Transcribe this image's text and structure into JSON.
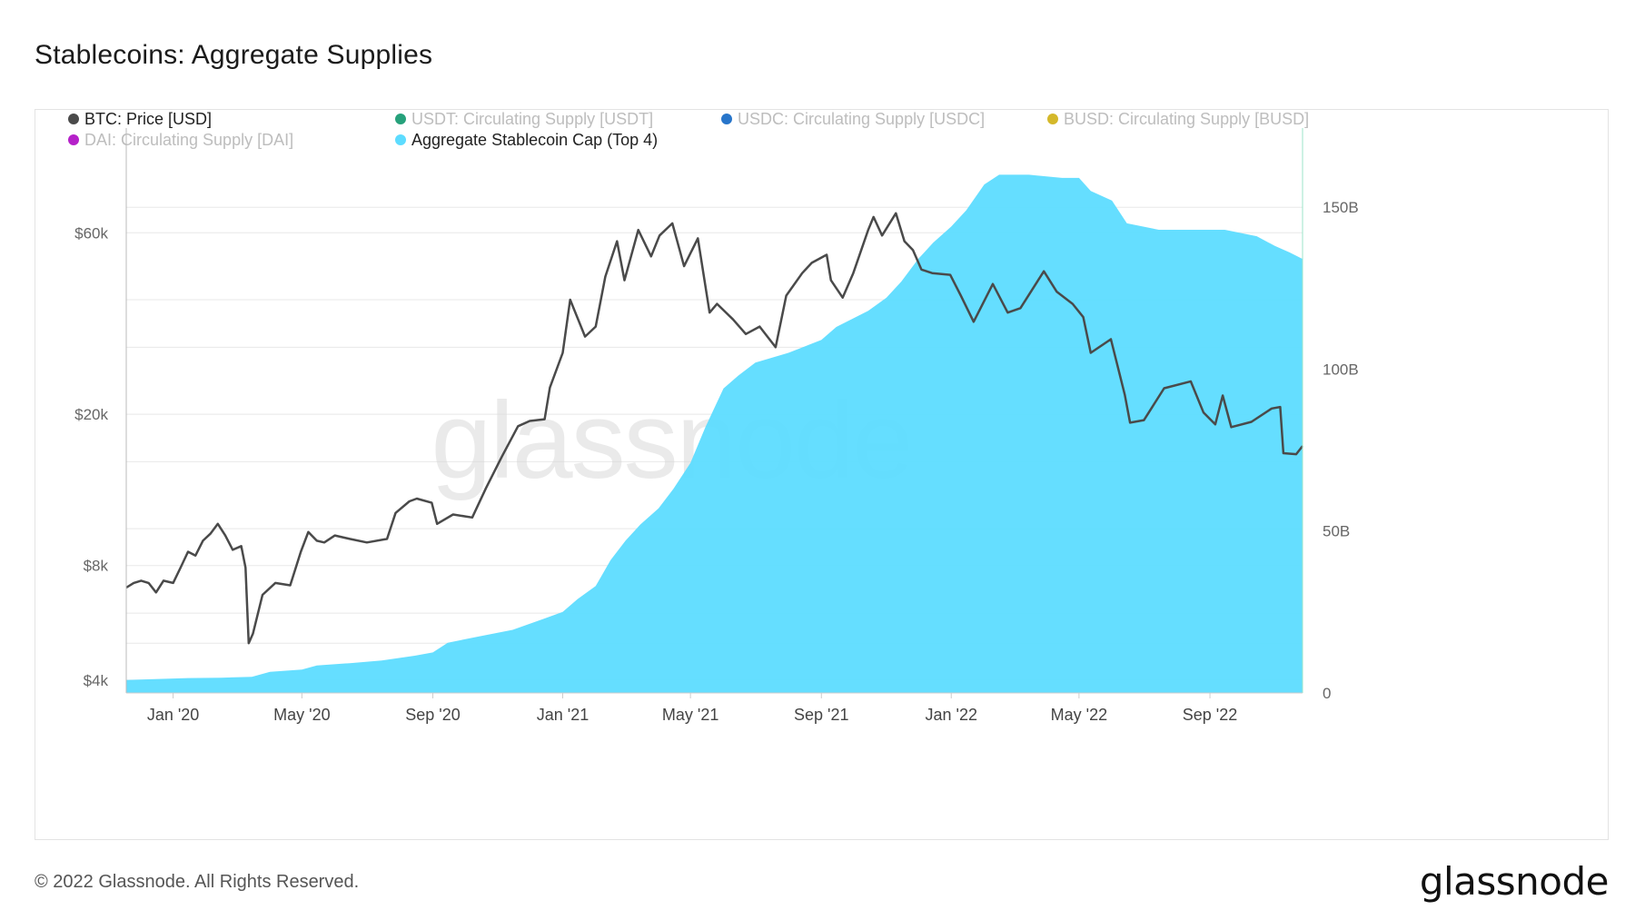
{
  "title": "Stablecoins: Aggregate Supplies",
  "footer": {
    "copyright": "© 2022 Glassnode. All Rights Reserved.",
    "brand": "glassnode"
  },
  "watermark": "glassnode",
  "colors": {
    "btc": "#4a4a4a",
    "usdt": "#26a17b",
    "usdc": "#2775ca",
    "busd": "#d4b82a",
    "dai": "#b521c9",
    "aggregate": "#5ddcff",
    "grid": "#e8e8e8",
    "axis_text": "#666666"
  },
  "chart_data": {
    "type": "line",
    "title": "Stablecoins: Aggregate Supplies",
    "legend": [
      {
        "name": "BTC: Price [USD]",
        "color": "#4a4a4a",
        "active": true
      },
      {
        "name": "USDT: Circulating Supply [USDT]",
        "color": "#26a17b",
        "active": false
      },
      {
        "name": "USDC: Circulating Supply [USDC]",
        "color": "#2775ca",
        "active": false
      },
      {
        "name": "BUSD: Circulating Supply [BUSD]",
        "color": "#d4b82a",
        "active": false
      },
      {
        "name": "DAI: Circulating Supply [DAI]",
        "color": "#b521c9",
        "active": false
      },
      {
        "name": "Aggregate Stablecoin Cap (Top 4)",
        "color": "#5ddcff",
        "active": true
      }
    ],
    "legend_position": "top",
    "x_ticks": [
      "Jan '20",
      "May '20",
      "Sep '20",
      "Jan '21",
      "May '21",
      "Sep '21",
      "Jan '22",
      "May '22",
      "Sep '22"
    ],
    "x_tick_dates": [
      "2020-01-01",
      "2020-05-01",
      "2020-09-01",
      "2021-01-01",
      "2021-05-01",
      "2021-09-01",
      "2022-01-01",
      "2022-05-01",
      "2022-09-01"
    ],
    "x_range": [
      "2019-11-18",
      "2022-11-27"
    ],
    "y_left": {
      "scale": "log",
      "ticks": [
        "$4k",
        "$8k",
        "$20k",
        "$60k"
      ],
      "tick_values": [
        4000,
        8000,
        20000,
        60000
      ],
      "range": [
        3700,
        110000
      ]
    },
    "y_right": {
      "scale": "linear",
      "ticks": [
        "0",
        "50B",
        "100B",
        "150B"
      ],
      "tick_values": [
        0,
        50,
        100,
        150
      ],
      "range": [
        0,
        173
      ]
    },
    "grid": true,
    "series": [
      {
        "name": "BTC: Price [USD]",
        "axis": "left",
        "style": "line",
        "points": [
          [
            "2019-11-18",
            7000
          ],
          [
            "2019-11-25",
            7200
          ],
          [
            "2019-12-02",
            7300
          ],
          [
            "2019-12-09",
            7200
          ],
          [
            "2019-12-16",
            6800
          ],
          [
            "2019-12-23",
            7300
          ],
          [
            "2020-01-01",
            7200
          ],
          [
            "2020-01-08",
            7900
          ],
          [
            "2020-01-15",
            8700
          ],
          [
            "2020-01-22",
            8500
          ],
          [
            "2020-01-29",
            9300
          ],
          [
            "2020-02-05",
            9700
          ],
          [
            "2020-02-12",
            10300
          ],
          [
            "2020-02-19",
            9600
          ],
          [
            "2020-02-26",
            8800
          ],
          [
            "2020-03-05",
            9000
          ],
          [
            "2020-03-09",
            7900
          ],
          [
            "2020-03-12",
            5000
          ],
          [
            "2020-03-16",
            5300
          ],
          [
            "2020-03-25",
            6700
          ],
          [
            "2020-04-06",
            7200
          ],
          [
            "2020-04-20",
            7100
          ],
          [
            "2020-04-30",
            8700
          ],
          [
            "2020-05-07",
            9800
          ],
          [
            "2020-05-15",
            9300
          ],
          [
            "2020-05-22",
            9200
          ],
          [
            "2020-06-01",
            9600
          ],
          [
            "2020-06-15",
            9400
          ],
          [
            "2020-07-01",
            9200
          ],
          [
            "2020-07-20",
            9400
          ],
          [
            "2020-07-28",
            11000
          ],
          [
            "2020-08-10",
            11800
          ],
          [
            "2020-08-17",
            12000
          ],
          [
            "2020-08-31",
            11700
          ],
          [
            "2020-09-05",
            10300
          ],
          [
            "2020-09-20",
            10900
          ],
          [
            "2020-10-08",
            10700
          ],
          [
            "2020-10-21",
            12800
          ],
          [
            "2020-11-05",
            15500
          ],
          [
            "2020-11-20",
            18600
          ],
          [
            "2020-12-01",
            19200
          ],
          [
            "2020-12-15",
            19400
          ],
          [
            "2020-12-20",
            23500
          ],
          [
            "2021-01-01",
            29000
          ],
          [
            "2021-01-08",
            40000
          ],
          [
            "2021-01-22",
            32000
          ],
          [
            "2021-02-01",
            34000
          ],
          [
            "2021-02-10",
            46000
          ],
          [
            "2021-02-21",
            57000
          ],
          [
            "2021-02-28",
            45000
          ],
          [
            "2021-03-13",
            61000
          ],
          [
            "2021-03-25",
            52000
          ],
          [
            "2021-04-02",
            59000
          ],
          [
            "2021-04-14",
            63500
          ],
          [
            "2021-04-25",
            49000
          ],
          [
            "2021-05-08",
            58000
          ],
          [
            "2021-05-19",
            37000
          ],
          [
            "2021-05-26",
            39000
          ],
          [
            "2021-06-10",
            35500
          ],
          [
            "2021-06-22",
            32500
          ],
          [
            "2021-07-05",
            34000
          ],
          [
            "2021-07-20",
            30000
          ],
          [
            "2021-07-30",
            41000
          ],
          [
            "2021-08-14",
            47000
          ],
          [
            "2021-08-23",
            50000
          ],
          [
            "2021-09-06",
            52500
          ],
          [
            "2021-09-10",
            45000
          ],
          [
            "2021-09-21",
            40500
          ],
          [
            "2021-10-01",
            47000
          ],
          [
            "2021-10-15",
            61000
          ],
          [
            "2021-10-20",
            66000
          ],
          [
            "2021-10-28",
            59000
          ],
          [
            "2021-11-10",
            67500
          ],
          [
            "2021-11-18",
            57000
          ],
          [
            "2021-11-26",
            54000
          ],
          [
            "2021-12-04",
            48000
          ],
          [
            "2021-12-14",
            47000
          ],
          [
            "2021-12-31",
            46500
          ],
          [
            "2022-01-10",
            41000
          ],
          [
            "2022-01-22",
            35000
          ],
          [
            "2022-02-09",
            44000
          ],
          [
            "2022-02-23",
            37000
          ],
          [
            "2022-03-07",
            38000
          ],
          [
            "2022-03-29",
            47500
          ],
          [
            "2022-04-10",
            42000
          ],
          [
            "2022-04-25",
            39000
          ],
          [
            "2022-05-05",
            36000
          ],
          [
            "2022-05-12",
            29000
          ],
          [
            "2022-05-31",
            31500
          ],
          [
            "2022-06-13",
            22500
          ],
          [
            "2022-06-18",
            19000
          ],
          [
            "2022-07-01",
            19300
          ],
          [
            "2022-07-20",
            23400
          ],
          [
            "2022-08-14",
            24400
          ],
          [
            "2022-08-26",
            20200
          ],
          [
            "2022-09-06",
            18800
          ],
          [
            "2022-09-13",
            22400
          ],
          [
            "2022-09-21",
            18500
          ],
          [
            "2022-10-10",
            19100
          ],
          [
            "2022-10-29",
            20700
          ],
          [
            "2022-11-06",
            20900
          ],
          [
            "2022-11-09",
            15800
          ],
          [
            "2022-11-21",
            15700
          ],
          [
            "2022-11-27",
            16500
          ]
        ]
      },
      {
        "name": "Aggregate Stablecoin Cap (Top 4)",
        "axis": "right",
        "style": "area",
        "points": [
          [
            "2019-11-18",
            4
          ],
          [
            "2019-12-15",
            4.3
          ],
          [
            "2020-01-15",
            4.6
          ],
          [
            "2020-02-15",
            4.7
          ],
          [
            "2020-03-15",
            5
          ],
          [
            "2020-04-01",
            6.5
          ],
          [
            "2020-05-01",
            7.2
          ],
          [
            "2020-05-15",
            8.5
          ],
          [
            "2020-06-15",
            9.2
          ],
          [
            "2020-07-15",
            10
          ],
          [
            "2020-08-15",
            11.5
          ],
          [
            "2020-09-01",
            12.5
          ],
          [
            "2020-09-15",
            15.5
          ],
          [
            "2020-10-15",
            17.5
          ],
          [
            "2020-11-15",
            19.5
          ],
          [
            "2020-12-15",
            23
          ],
          [
            "2021-01-01",
            25
          ],
          [
            "2021-01-15",
            29
          ],
          [
            "2021-02-01",
            33
          ],
          [
            "2021-02-15",
            41
          ],
          [
            "2021-03-01",
            47
          ],
          [
            "2021-03-15",
            52
          ],
          [
            "2021-04-01",
            57
          ],
          [
            "2021-04-15",
            63
          ],
          [
            "2021-05-01",
            71
          ],
          [
            "2021-05-15",
            82
          ],
          [
            "2021-06-01",
            94
          ],
          [
            "2021-06-15",
            98
          ],
          [
            "2021-07-01",
            102
          ],
          [
            "2021-08-01",
            105
          ],
          [
            "2021-09-01",
            109
          ],
          [
            "2021-09-15",
            113
          ],
          [
            "2021-10-15",
            118
          ],
          [
            "2021-11-01",
            122
          ],
          [
            "2021-11-15",
            127
          ],
          [
            "2021-12-01",
            134
          ],
          [
            "2021-12-15",
            139
          ],
          [
            "2022-01-01",
            144
          ],
          [
            "2022-01-15",
            149
          ],
          [
            "2022-02-01",
            157
          ],
          [
            "2022-02-15",
            160
          ],
          [
            "2022-03-15",
            160
          ],
          [
            "2022-04-15",
            159
          ],
          [
            "2022-05-01",
            159
          ],
          [
            "2022-05-12",
            155
          ],
          [
            "2022-06-01",
            152
          ],
          [
            "2022-06-15",
            145
          ],
          [
            "2022-07-15",
            143
          ],
          [
            "2022-08-15",
            143
          ],
          [
            "2022-09-15",
            143
          ],
          [
            "2022-10-15",
            141
          ],
          [
            "2022-11-01",
            138
          ],
          [
            "2022-11-15",
            136
          ],
          [
            "2022-11-27",
            134
          ]
        ]
      }
    ]
  }
}
